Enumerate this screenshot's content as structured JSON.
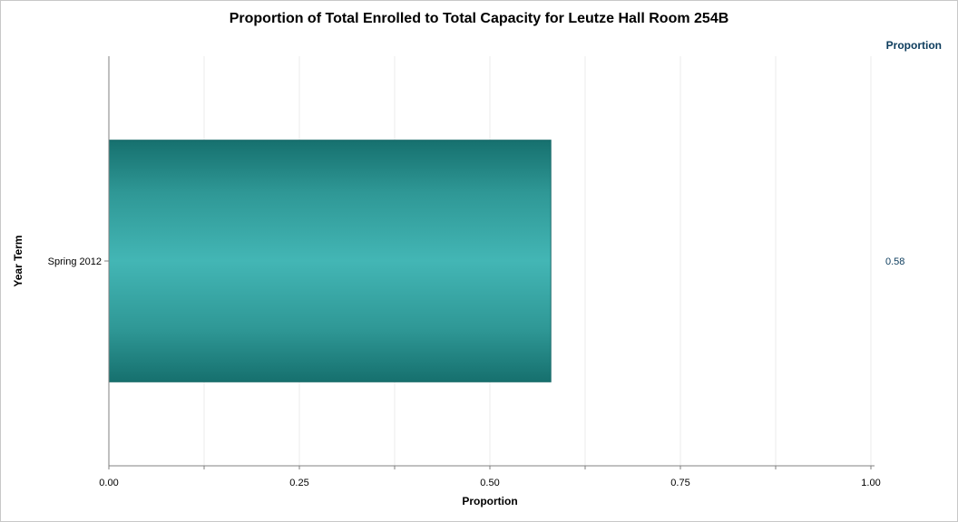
{
  "chart_data": {
    "type": "bar",
    "orientation": "horizontal",
    "title": "Proportion of Total Enrolled to Total Capacity for Leutze Hall Room 254B",
    "xlabel": "Proportion",
    "ylabel": "Year Term",
    "categories": [
      "Spring 2012"
    ],
    "values": [
      0.58
    ],
    "value_labels": [
      "0.58"
    ],
    "stat_column_header": "Proportion",
    "xlim": [
      0,
      1
    ],
    "xticks": [
      0,
      0.25,
      0.5,
      0.75,
      1.0
    ],
    "xtick_labels": [
      "0.00",
      "0.25",
      "0.50",
      "0.75",
      "1.00"
    ],
    "grid": true,
    "bar_color": "#3fb3b2",
    "bar_edge_color": "#1a6a69"
  }
}
